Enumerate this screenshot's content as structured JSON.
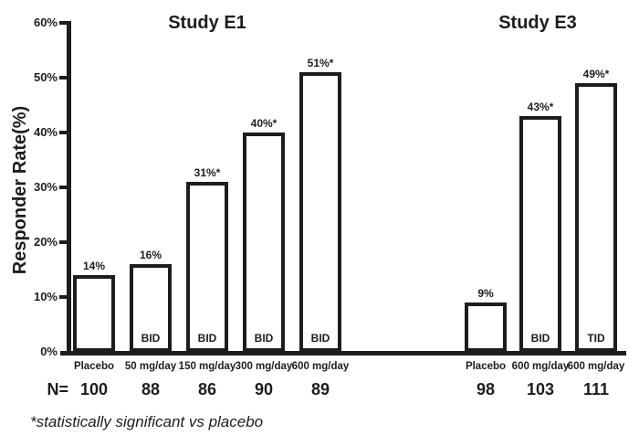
{
  "page": {
    "background_color": "#ffffff",
    "ink_color": "#1d1d1d"
  },
  "n_prefix": "N=",
  "footnote": "*statistically significant vs placebo",
  "chart_data": {
    "type": "bar",
    "title": "",
    "xlabel": "",
    "ylabel": "Responder Rate(%)",
    "ylim": [
      0,
      60
    ],
    "ytick_step": 10,
    "yticks": [
      "0%",
      "10%",
      "20%",
      "30%",
      "40%",
      "50%",
      "60%"
    ],
    "grid": false,
    "legend": "none",
    "bar_fill": "#ffffff",
    "bar_outline": "#1d1d1d",
    "groups": [
      {
        "title": "Study E1",
        "bars": [
          {
            "dose": "Placebo",
            "value": 14,
            "label": "14%",
            "regimen": "",
            "n": "100"
          },
          {
            "dose": "50 mg/day",
            "value": 16,
            "label": "16%",
            "regimen": "BID",
            "n": "88"
          },
          {
            "dose": "150 mg/day",
            "value": 31,
            "label": "31%*",
            "regimen": "BID",
            "n": "86"
          },
          {
            "dose": "300 mg/day",
            "value": 40,
            "label": "40%*",
            "regimen": "BID",
            "n": "90"
          },
          {
            "dose": "600 mg/day",
            "value": 51,
            "label": "51%*",
            "regimen": "BID",
            "n": "89"
          }
        ]
      },
      {
        "title": "Study E3",
        "bars": [
          {
            "dose": "Placebo",
            "value": 9,
            "label": "9%",
            "regimen": "",
            "n": "98"
          },
          {
            "dose": "600 mg/day",
            "value": 43,
            "label": "43%*",
            "regimen": "BID",
            "n": "103"
          },
          {
            "dose": "600 mg/day",
            "value": 49,
            "label": "49%*",
            "regimen": "TID",
            "n": "111"
          }
        ]
      }
    ]
  }
}
